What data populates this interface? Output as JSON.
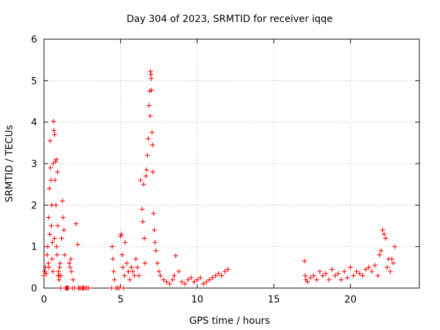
{
  "chart_data": {
    "type": "scatter",
    "title": "Day 304 of 2023, SRMTID for receiver iqqe",
    "xlabel": "GPS time / hours",
    "ylabel": "SRMTID / TECUs",
    "xlim": [
      0,
      24.5
    ],
    "ylim": [
      0,
      6
    ],
    "xticks": [
      0,
      5,
      10,
      15,
      20
    ],
    "yticks": [
      0,
      1,
      2,
      3,
      4,
      5,
      6
    ],
    "grid": true,
    "marker": "plus",
    "color": "#ff0000",
    "series": [
      {
        "name": "SRMTID",
        "x": [
          0.0,
          0.05,
          0.1,
          0.15,
          0.2,
          0.25,
          0.28,
          0.3,
          0.32,
          0.35,
          0.38,
          0.4,
          0.42,
          0.45,
          0.48,
          0.5,
          0.52,
          0.55,
          0.58,
          0.6,
          0.62,
          0.65,
          0.68,
          0.7,
          0.72,
          0.75,
          0.78,
          0.8,
          0.82,
          0.85,
          0.88,
          0.9,
          0.92,
          0.95,
          0.98,
          1.0,
          1.02,
          1.05,
          1.08,
          1.1,
          1.15,
          1.2,
          1.25,
          1.3,
          1.35,
          1.4,
          1.45,
          1.5,
          1.55,
          1.6,
          1.65,
          1.7,
          1.75,
          1.8,
          1.85,
          1.9,
          2.0,
          2.1,
          2.2,
          2.25,
          2.3,
          2.4,
          2.5,
          2.55,
          2.6,
          2.7,
          2.8,
          2.9,
          4.4,
          4.45,
          4.5,
          4.55,
          4.6,
          4.7,
          4.8,
          4.9,
          5.0,
          5.05,
          5.1,
          5.15,
          5.2,
          5.25,
          5.3,
          5.4,
          5.5,
          5.6,
          5.7,
          5.8,
          5.9,
          6.0,
          6.1,
          6.2,
          6.3,
          6.4,
          6.45,
          6.5,
          6.55,
          6.6,
          6.65,
          6.7,
          6.75,
          6.8,
          6.85,
          6.9,
          6.92,
          6.95,
          6.98,
          7.0,
          7.02,
          7.05,
          7.08,
          7.1,
          7.15,
          7.2,
          7.25,
          7.3,
          7.4,
          7.5,
          7.6,
          7.8,
          8.0,
          8.2,
          8.4,
          8.5,
          8.6,
          8.8,
          9.0,
          9.2,
          9.4,
          9.6,
          9.8,
          10.0,
          10.2,
          10.4,
          10.6,
          10.8,
          11.0,
          11.2,
          11.4,
          11.6,
          11.8,
          12.0,
          17.0,
          17.05,
          17.1,
          17.2,
          17.4,
          17.6,
          17.8,
          18.0,
          18.2,
          18.4,
          18.6,
          18.8,
          19.0,
          19.2,
          19.4,
          19.6,
          19.8,
          20.0,
          20.2,
          20.4,
          20.6,
          20.8,
          21.0,
          21.2,
          21.4,
          21.6,
          21.8,
          21.9,
          22.0,
          22.1,
          22.2,
          22.3,
          22.4,
          22.5,
          22.6,
          22.7,
          22.8,
          22.9
        ],
        "y": [
          0.3,
          0.4,
          0.5,
          0.35,
          0.8,
          1.0,
          0.6,
          1.7,
          0.5,
          2.4,
          1.3,
          3.55,
          2.9,
          2.6,
          1.5,
          2.0,
          0.7,
          1.1,
          0.4,
          3.0,
          4.02,
          3.8,
          1.2,
          3.7,
          2.6,
          3.05,
          2.0,
          3.1,
          1.0,
          0.8,
          2.8,
          1.5,
          0.3,
          0.4,
          0.2,
          0.3,
          0.5,
          0.6,
          0.0,
          0.3,
          1.2,
          2.1,
          1.7,
          1.4,
          0.8,
          0.0,
          0.0,
          0.0,
          0.0,
          0.0,
          0.6,
          0.5,
          0.7,
          0.4,
          0.0,
          0.2,
          0.0,
          1.55,
          1.05,
          0.0,
          0.0,
          0.0,
          0.0,
          0.0,
          0.0,
          0.0,
          0.0,
          0.0,
          0.0,
          1.0,
          0.7,
          0.4,
          0.2,
          0.0,
          0.0,
          0.0,
          1.25,
          1.3,
          0.8,
          0.5,
          0.0,
          0.3,
          1.1,
          0.6,
          0.4,
          0.2,
          0.5,
          0.4,
          0.3,
          0.7,
          0.5,
          0.3,
          2.6,
          1.9,
          1.6,
          2.5,
          1.2,
          0.6,
          2.7,
          2.85,
          3.2,
          3.6,
          4.4,
          4.75,
          4.15,
          5.22,
          5.15,
          5.05,
          4.77,
          3.75,
          3.45,
          2.8,
          1.8,
          1.4,
          1.1,
          0.9,
          0.6,
          0.4,
          0.3,
          0.2,
          0.15,
          0.1,
          0.2,
          0.3,
          0.78,
          0.4,
          0.15,
          0.1,
          0.2,
          0.25,
          0.15,
          0.2,
          0.25,
          0.1,
          0.15,
          0.2,
          0.25,
          0.3,
          0.35,
          0.3,
          0.4,
          0.45,
          0.65,
          0.3,
          0.2,
          0.15,
          0.25,
          0.3,
          0.2,
          0.4,
          0.3,
          0.35,
          0.2,
          0.45,
          0.3,
          0.35,
          0.2,
          0.4,
          0.25,
          0.5,
          0.3,
          0.4,
          0.35,
          0.3,
          0.45,
          0.5,
          0.4,
          0.55,
          0.3,
          0.8,
          0.9,
          1.4,
          1.3,
          1.2,
          0.5,
          0.7,
          0.4,
          0.7,
          0.6,
          1.0
        ]
      }
    ]
  }
}
